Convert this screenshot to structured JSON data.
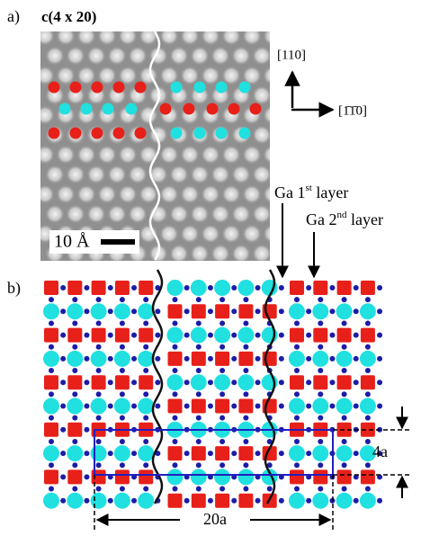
{
  "panel_a": {
    "label": "a)",
    "title": "c(4 x 20)",
    "direction_1": "[110]",
    "direction_2": "[1̄1̄0]",
    "scale_bar": "10 Å"
  },
  "panel_b": {
    "label": "b)",
    "layer_1": {
      "prefix": "Ga 1",
      "sup": "st",
      "suffix": " layer"
    },
    "layer_2": {
      "prefix": "Ga 2",
      "sup": "nd",
      "suffix": " layer"
    },
    "height": "4a",
    "width": "20a"
  }
}
